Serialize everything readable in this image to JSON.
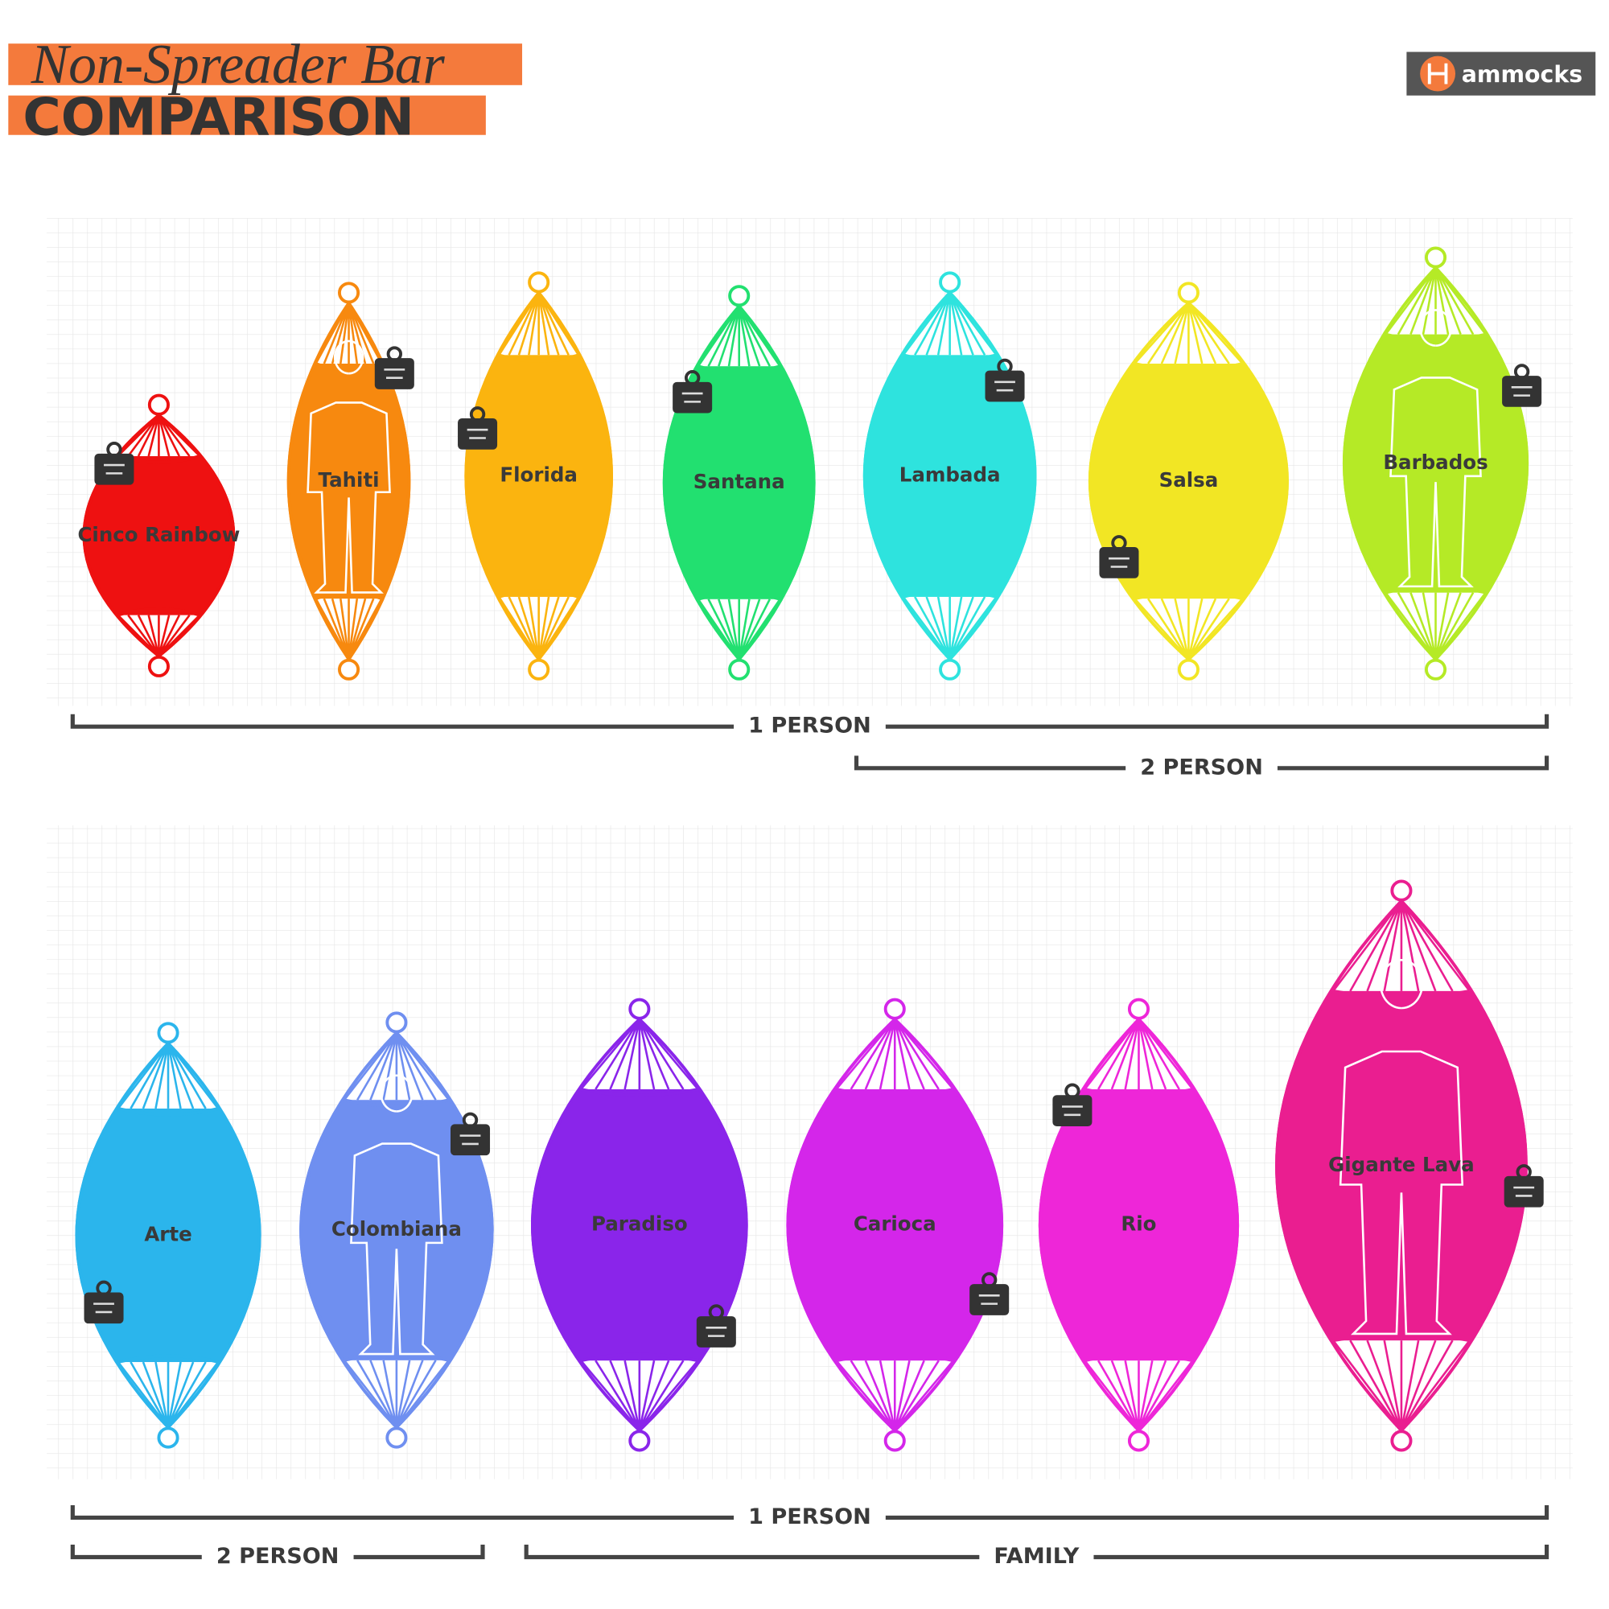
{
  "header": {
    "script_title": "Non-Spreader Bar",
    "title": "COMPARISON"
  },
  "logo": {
    "name": "ammocks"
  },
  "panels": [
    {
      "hammocks": [
        {
          "name": "Cinco Rainbow",
          "color": "#ee1111"
        },
        {
          "name": "Tahiti",
          "color": "#f7890f"
        },
        {
          "name": "Florida",
          "color": "#fbb40f"
        },
        {
          "name": "Santana",
          "color": "#22e070"
        },
        {
          "name": "Lambada",
          "color": "#2ee3de"
        },
        {
          "name": "Salsa",
          "color": "#f2e624"
        },
        {
          "name": "Barbados",
          "color": "#b5ea26"
        }
      ],
      "brackets": [
        {
          "label": "1 PERSON"
        },
        {
          "label": "2 PERSON"
        }
      ]
    },
    {
      "hammocks": [
        {
          "name": "Arte",
          "color": "#2bb5ec"
        },
        {
          "name": "Colombiana",
          "color": "#6f8ff0"
        },
        {
          "name": "Paradiso",
          "color": "#8a25ea"
        },
        {
          "name": "Carioca",
          "color": "#d426ea"
        },
        {
          "name": "Rio",
          "color": "#ee26d8"
        },
        {
          "name": "Gigante Lava",
          "color": "#ea1e90"
        }
      ],
      "brackets": [
        {
          "label": "1 PERSON"
        },
        {
          "label": "2 PERSON"
        },
        {
          "label": "FAMILY"
        }
      ]
    }
  ]
}
